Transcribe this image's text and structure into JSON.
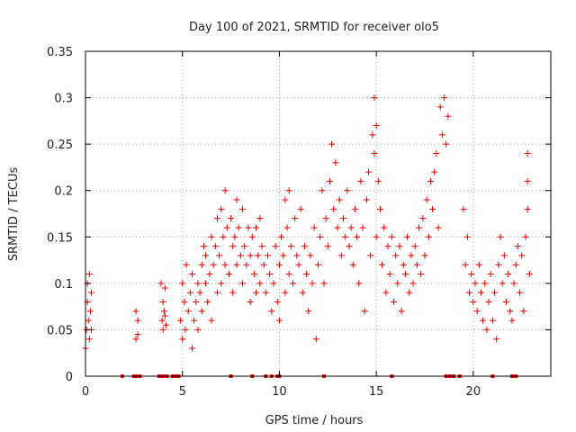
{
  "chart_data": {
    "type": "scatter",
    "title": "Day 100 of 2021, SRMTID for receiver olo5",
    "xlabel": "GPS time / hours",
    "ylabel": "SRMTID / TECUs",
    "xlim": [
      0,
      24
    ],
    "ylim": [
      0,
      0.35
    ],
    "x_ticks": [
      0,
      5,
      10,
      15,
      20
    ],
    "x_tick_labels": [
      "0",
      "5",
      "10",
      "15",
      "20"
    ],
    "y_ticks": [
      0,
      0.05,
      0.1,
      0.15,
      0.2,
      0.25,
      0.3,
      0.35
    ],
    "y_tick_labels": [
      "0",
      "0.05",
      "0.1",
      "0.15",
      "0.2",
      "0.25",
      "0.3",
      "0.35"
    ],
    "grid": true,
    "marker": "+",
    "color": "#e00000",
    "series": [
      {
        "name": "SRMTID",
        "points": [
          [
            0.0,
            0.03
          ],
          [
            0.05,
            0.05
          ],
          [
            0.1,
            0.1
          ],
          [
            0.1,
            0.08
          ],
          [
            0.15,
            0.06
          ],
          [
            0.2,
            0.11
          ],
          [
            0.2,
            0.04
          ],
          [
            0.25,
            0.07
          ],
          [
            0.3,
            0.05
          ],
          [
            0.3,
            0.09
          ],
          [
            2.6,
            0.07
          ],
          [
            2.6,
            0.04
          ],
          [
            2.7,
            0.06
          ],
          [
            2.7,
            0.045
          ],
          [
            3.9,
            0.1
          ],
          [
            3.95,
            0.06
          ],
          [
            4.0,
            0.08
          ],
          [
            4.0,
            0.05
          ],
          [
            4.05,
            0.07
          ],
          [
            4.1,
            0.095
          ],
          [
            4.1,
            0.065
          ],
          [
            4.15,
            0.055
          ],
          [
            4.9,
            0.06
          ],
          [
            5.0,
            0.04
          ],
          [
            5.0,
            0.1
          ],
          [
            5.1,
            0.08
          ],
          [
            5.15,
            0.05
          ],
          [
            5.2,
            0.12
          ],
          [
            5.3,
            0.07
          ],
          [
            5.4,
            0.09
          ],
          [
            5.5,
            0.03
          ],
          [
            5.5,
            0.11
          ],
          [
            5.6,
            0.06
          ],
          [
            5.7,
            0.08
          ],
          [
            5.8,
            0.1
          ],
          [
            5.8,
            0.05
          ],
          [
            5.9,
            0.09
          ],
          [
            6.0,
            0.12
          ],
          [
            6.0,
            0.07
          ],
          [
            6.1,
            0.14
          ],
          [
            6.2,
            0.1
          ],
          [
            6.2,
            0.13
          ],
          [
            6.3,
            0.08
          ],
          [
            6.4,
            0.11
          ],
          [
            6.5,
            0.15
          ],
          [
            6.5,
            0.06
          ],
          [
            6.6,
            0.12
          ],
          [
            6.7,
            0.14
          ],
          [
            6.8,
            0.09
          ],
          [
            6.8,
            0.17
          ],
          [
            6.9,
            0.13
          ],
          [
            7.0,
            0.18
          ],
          [
            7.0,
            0.1
          ],
          [
            7.1,
            0.15
          ],
          [
            7.2,
            0.12
          ],
          [
            7.2,
            0.2
          ],
          [
            7.3,
            0.16
          ],
          [
            7.4,
            0.11
          ],
          [
            7.5,
            0.17
          ],
          [
            7.6,
            0.14
          ],
          [
            7.6,
            0.09
          ],
          [
            7.7,
            0.15
          ],
          [
            7.8,
            0.19
          ],
          [
            7.8,
            0.12
          ],
          [
            7.9,
            0.16
          ],
          [
            8.0,
            0.13
          ],
          [
            8.1,
            0.18
          ],
          [
            8.1,
            0.1
          ],
          [
            8.2,
            0.14
          ],
          [
            8.3,
            0.12
          ],
          [
            8.4,
            0.16
          ],
          [
            8.5,
            0.08
          ],
          [
            8.5,
            0.13
          ],
          [
            8.6,
            0.15
          ],
          [
            8.7,
            0.11
          ],
          [
            8.8,
            0.09
          ],
          [
            8.8,
            0.16
          ],
          [
            8.9,
            0.13
          ],
          [
            9.0,
            0.17
          ],
          [
            9.0,
            0.1
          ],
          [
            9.1,
            0.14
          ],
          [
            9.2,
            0.12
          ],
          [
            9.3,
            0.09
          ],
          [
            9.4,
            0.13
          ],
          [
            9.5,
            0.11
          ],
          [
            9.6,
            0.07
          ],
          [
            9.7,
            0.1
          ],
          [
            9.8,
            0.14
          ],
          [
            9.9,
            0.08
          ],
          [
            10.0,
            0.12
          ],
          [
            10.0,
            0.06
          ],
          [
            10.1,
            0.15
          ],
          [
            10.2,
            0.13
          ],
          [
            10.3,
            0.19
          ],
          [
            10.3,
            0.09
          ],
          [
            10.4,
            0.16
          ],
          [
            10.5,
            0.11
          ],
          [
            10.5,
            0.2
          ],
          [
            10.6,
            0.14
          ],
          [
            10.7,
            0.1
          ],
          [
            10.8,
            0.17
          ],
          [
            10.9,
            0.13
          ],
          [
            11.0,
            0.12
          ],
          [
            11.1,
            0.18
          ],
          [
            11.2,
            0.09
          ],
          [
            11.3,
            0.14
          ],
          [
            11.4,
            0.11
          ],
          [
            11.5,
            0.07
          ],
          [
            11.6,
            0.13
          ],
          [
            11.7,
            0.1
          ],
          [
            11.8,
            0.16
          ],
          [
            11.9,
            0.04
          ],
          [
            12.0,
            0.12
          ],
          [
            12.1,
            0.15
          ],
          [
            12.2,
            0.2
          ],
          [
            12.3,
            0.1
          ],
          [
            12.4,
            0.17
          ],
          [
            12.5,
            0.14
          ],
          [
            12.6,
            0.21
          ],
          [
            12.7,
            0.25
          ],
          [
            12.8,
            0.18
          ],
          [
            12.9,
            0.23
          ],
          [
            13.0,
            0.16
          ],
          [
            13.1,
            0.19
          ],
          [
            13.2,
            0.13
          ],
          [
            13.3,
            0.17
          ],
          [
            13.4,
            0.15
          ],
          [
            13.5,
            0.2
          ],
          [
            13.6,
            0.14
          ],
          [
            13.7,
            0.16
          ],
          [
            13.8,
            0.12
          ],
          [
            13.9,
            0.18
          ],
          [
            14.0,
            0.15
          ],
          [
            14.1,
            0.1
          ],
          [
            14.2,
            0.21
          ],
          [
            14.3,
            0.16
          ],
          [
            14.4,
            0.07
          ],
          [
            14.5,
            0.19
          ],
          [
            14.6,
            0.22
          ],
          [
            14.7,
            0.13
          ],
          [
            14.8,
            0.26
          ],
          [
            14.9,
            0.3
          ],
          [
            14.9,
            0.24
          ],
          [
            15.0,
            0.27
          ],
          [
            15.0,
            0.15
          ],
          [
            15.1,
            0.21
          ],
          [
            15.2,
            0.18
          ],
          [
            15.3,
            0.12
          ],
          [
            15.4,
            0.16
          ],
          [
            15.5,
            0.09
          ],
          [
            15.6,
            0.14
          ],
          [
            15.7,
            0.11
          ],
          [
            15.8,
            0.15
          ],
          [
            15.9,
            0.08
          ],
          [
            16.0,
            0.13
          ],
          [
            16.1,
            0.1
          ],
          [
            16.2,
            0.14
          ],
          [
            16.3,
            0.07
          ],
          [
            16.4,
            0.12
          ],
          [
            16.5,
            0.11
          ],
          [
            16.6,
            0.15
          ],
          [
            16.7,
            0.09
          ],
          [
            16.8,
            0.13
          ],
          [
            16.9,
            0.1
          ],
          [
            17.0,
            0.14
          ],
          [
            17.1,
            0.12
          ],
          [
            17.2,
            0.16
          ],
          [
            17.3,
            0.11
          ],
          [
            17.4,
            0.17
          ],
          [
            17.5,
            0.13
          ],
          [
            17.6,
            0.19
          ],
          [
            17.7,
            0.15
          ],
          [
            17.8,
            0.21
          ],
          [
            17.9,
            0.18
          ],
          [
            18.0,
            0.22
          ],
          [
            18.1,
            0.24
          ],
          [
            18.2,
            0.16
          ],
          [
            18.3,
            0.29
          ],
          [
            18.4,
            0.26
          ],
          [
            18.5,
            0.3
          ],
          [
            18.6,
            0.25
          ],
          [
            18.7,
            0.28
          ],
          [
            19.5,
            0.18
          ],
          [
            19.6,
            0.12
          ],
          [
            19.7,
            0.15
          ],
          [
            19.8,
            0.09
          ],
          [
            19.9,
            0.11
          ],
          [
            20.0,
            0.08
          ],
          [
            20.1,
            0.1
          ],
          [
            20.2,
            0.07
          ],
          [
            20.3,
            0.12
          ],
          [
            20.4,
            0.09
          ],
          [
            20.5,
            0.06
          ],
          [
            20.6,
            0.1
          ],
          [
            20.7,
            0.05
          ],
          [
            20.8,
            0.08
          ],
          [
            20.9,
            0.11
          ],
          [
            21.0,
            0.06
          ],
          [
            21.1,
            0.09
          ],
          [
            21.2,
            0.04
          ],
          [
            21.3,
            0.12
          ],
          [
            21.4,
            0.15
          ],
          [
            21.5,
            0.1
          ],
          [
            21.6,
            0.13
          ],
          [
            21.7,
            0.08
          ],
          [
            21.8,
            0.11
          ],
          [
            21.9,
            0.07
          ],
          [
            22.0,
            0.06
          ],
          [
            22.1,
            0.1
          ],
          [
            22.2,
            0.12
          ],
          [
            22.3,
            0.14
          ],
          [
            22.4,
            0.09
          ],
          [
            22.5,
            0.13
          ],
          [
            22.6,
            0.07
          ],
          [
            22.7,
            0.15
          ],
          [
            22.8,
            0.24
          ],
          [
            22.8,
            0.21
          ],
          [
            22.8,
            0.18
          ],
          [
            22.9,
            0.11
          ]
        ]
      }
    ],
    "zero_points_x": [
      1.9,
      2.5,
      2.6,
      2.8,
      3.8,
      3.9,
      4.0,
      4.2,
      4.5,
      4.6,
      4.7,
      4.8,
      7.5,
      8.6,
      9.3,
      9.6,
      9.9,
      10.0,
      12.3,
      15.8,
      18.6,
      18.8,
      19.0,
      19.3,
      21.0,
      22.0,
      22.2
    ]
  }
}
